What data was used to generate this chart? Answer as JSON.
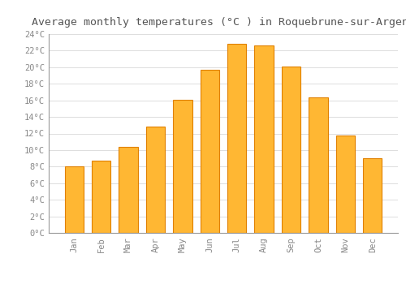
{
  "months": [
    "Jan",
    "Feb",
    "Mar",
    "Apr",
    "May",
    "Jun",
    "Jul",
    "Aug",
    "Sep",
    "Oct",
    "Nov",
    "Dec"
  ],
  "temperatures": [
    8.0,
    8.7,
    10.4,
    12.8,
    16.1,
    19.7,
    22.8,
    22.6,
    20.1,
    16.4,
    11.8,
    9.0
  ],
  "bar_color": "#FFA500",
  "bar_color_inner": "#FFB733",
  "bar_edge_color": "#E08000",
  "background_color": "#FFFFFF",
  "grid_color": "#DDDDDD",
  "title": "Average monthly temperatures (°C ) in Roquebrune-sur-Argens",
  "title_fontsize": 9.5,
  "tick_label_color": "#888888",
  "ylim": [
    0,
    24
  ],
  "ytick_step": 2,
  "font_family": "monospace"
}
